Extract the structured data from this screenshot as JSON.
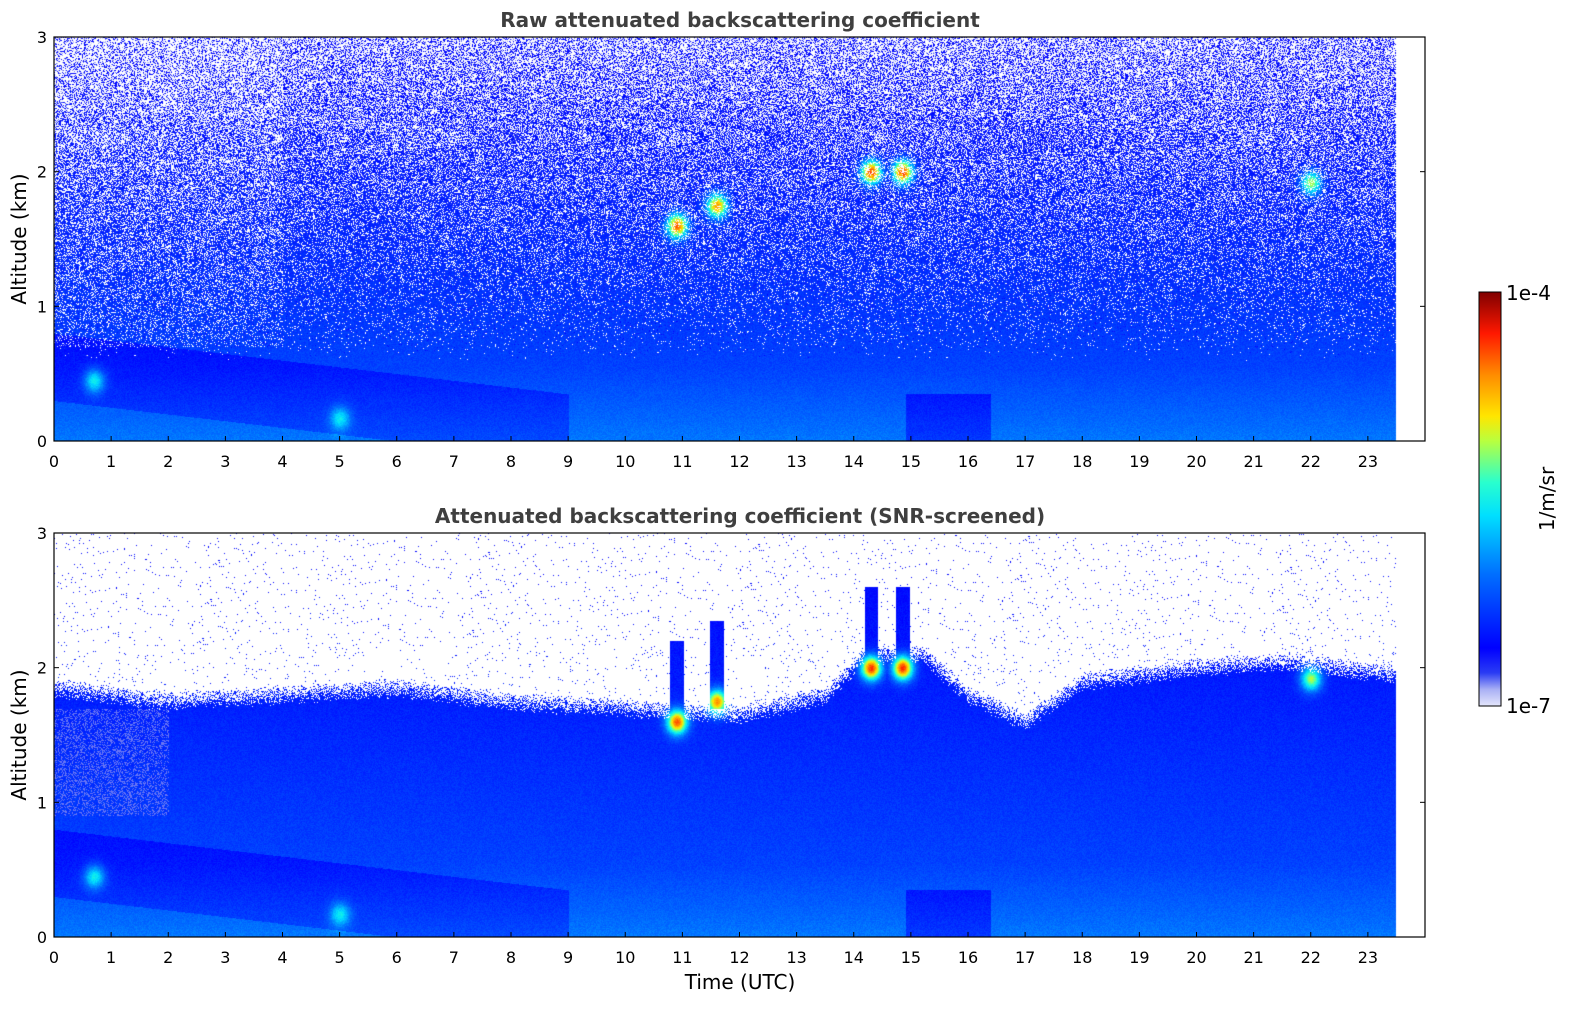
{
  "chart_data": [
    {
      "type": "heatmap",
      "title": "Raw attenuated backscattering coefficient",
      "xlabel": "",
      "ylabel": "Altitude (km)",
      "xlim": [
        0,
        24
      ],
      "ylim": [
        0,
        3
      ],
      "data_xlim": [
        0,
        23.5
      ],
      "x_ticks": [
        "0",
        "1",
        "2",
        "3",
        "4",
        "5",
        "6",
        "7",
        "8",
        "9",
        "10",
        "11",
        "12",
        "13",
        "14",
        "15",
        "16",
        "17",
        "18",
        "19",
        "20",
        "21",
        "22",
        "23"
      ],
      "y_ticks": [
        "0",
        "1",
        "2",
        "3"
      ],
      "snr_screened": false,
      "features": [
        {
          "x": 0.7,
          "y": 0.45,
          "level": 0.55,
          "kind": "boundary layer aerosol"
        },
        {
          "x": 5.0,
          "y": 0.17,
          "level": 0.5,
          "kind": "low aerosol"
        },
        {
          "x": 10.9,
          "y": 1.6,
          "level": 0.9,
          "kind": "cloud"
        },
        {
          "x": 11.6,
          "y": 1.75,
          "level": 0.85,
          "kind": "cloud"
        },
        {
          "x": 14.3,
          "y": 2.0,
          "level": 0.95,
          "kind": "cloud"
        },
        {
          "x": 14.85,
          "y": 2.0,
          "level": 0.95,
          "kind": "cloud"
        },
        {
          "x": 22.0,
          "y": 1.92,
          "level": 0.7,
          "kind": "cloud"
        }
      ]
    },
    {
      "type": "heatmap",
      "title": "Attenuated backscattering coefficient (SNR-screened)",
      "xlabel": "Time (UTC)",
      "ylabel": "Altitude (km)",
      "xlim": [
        0,
        24
      ],
      "ylim": [
        0,
        3
      ],
      "data_xlim": [
        0,
        23.5
      ],
      "x_ticks": [
        "0",
        "1",
        "2",
        "3",
        "4",
        "5",
        "6",
        "7",
        "8",
        "9",
        "10",
        "11",
        "12",
        "13",
        "14",
        "15",
        "16",
        "17",
        "18",
        "19",
        "20",
        "21",
        "22",
        "23"
      ],
      "y_ticks": [
        "0",
        "1",
        "2",
        "3"
      ],
      "snr_screened": true,
      "screen_top_km": [
        [
          0,
          1.85
        ],
        [
          2,
          1.75
        ],
        [
          4,
          1.8
        ],
        [
          6,
          1.85
        ],
        [
          8,
          1.75
        ],
        [
          10,
          1.7
        ],
        [
          12,
          1.65
        ],
        [
          13.5,
          1.8
        ],
        [
          14.2,
          2.1
        ],
        [
          15.2,
          2.1
        ],
        [
          16,
          1.8
        ],
        [
          17,
          1.6
        ],
        [
          18,
          1.9
        ],
        [
          20,
          2.0
        ],
        [
          21.5,
          2.05
        ],
        [
          23.5,
          1.95
        ]
      ],
      "features": [
        {
          "x": 0.7,
          "y": 0.45,
          "level": 0.55,
          "kind": "boundary layer aerosol"
        },
        {
          "x": 5.0,
          "y": 0.17,
          "level": 0.5,
          "kind": "low aerosol"
        },
        {
          "x": 10.9,
          "y": 1.6,
          "level": 0.9,
          "kind": "cloud"
        },
        {
          "x": 11.6,
          "y": 1.75,
          "level": 0.85,
          "kind": "cloud"
        },
        {
          "x": 14.3,
          "y": 2.0,
          "level": 0.95,
          "kind": "cloud"
        },
        {
          "x": 14.85,
          "y": 2.0,
          "level": 0.95,
          "kind": "cloud"
        },
        {
          "x": 22.0,
          "y": 1.92,
          "level": 0.7,
          "kind": "cloud"
        }
      ]
    }
  ],
  "colorbar": {
    "label": "1/m/sr",
    "max_label": "1e-4",
    "min_label": "1e-7",
    "scale": "log",
    "colormap": "jet",
    "range": [
      1e-07,
      0.0001
    ]
  },
  "colors": {
    "title": "#3f3f3f",
    "axis": "#000000",
    "background": "#ffffff"
  }
}
